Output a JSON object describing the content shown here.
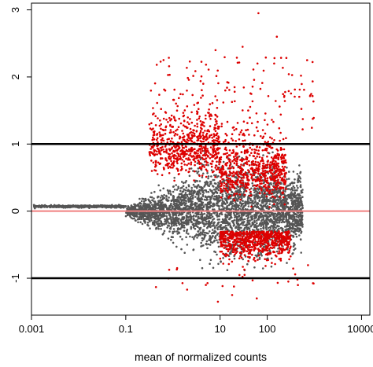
{
  "chart_data": {
    "type": "scatter",
    "title": "",
    "xlabel": "mean of normalized counts",
    "ylabel": "",
    "x_scale": "log10",
    "xlim": [
      0.001,
      15000
    ],
    "ylim": [
      -1.55,
      3.1
    ],
    "x_ticks": [
      {
        "value": 0.001,
        "label": "0.001"
      },
      {
        "value": 0.1,
        "label": "0.1"
      },
      {
        "value": 10,
        "label": "10"
      },
      {
        "value": 100,
        "label": "100"
      },
      {
        "value": 10000,
        "label": "10000"
      }
    ],
    "y_ticks": [
      {
        "value": -1,
        "label": "-1"
      },
      {
        "value": 0,
        "label": "0"
      },
      {
        "value": 1,
        "label": "1"
      },
      {
        "value": 2,
        "label": "2"
      },
      {
        "value": 3,
        "label": "3"
      }
    ],
    "reference_lines": [
      {
        "y": 1,
        "color": "#000000"
      },
      {
        "y": -1,
        "color": "#000000"
      },
      {
        "y": 0,
        "color": "#f08080"
      }
    ],
    "grid": false,
    "legend": "none",
    "colors": {
      "not_significant": "#555555",
      "significant": "#dd0000",
      "zero_line": "#f08080",
      "threshold_lines": "#000000"
    },
    "notable_points": [
      {
        "x": 65,
        "y": 2.95
      },
      {
        "x": 160,
        "y": 2.6
      },
      {
        "x": 8,
        "y": 2.4
      },
      {
        "x": 30,
        "y": 2.45
      },
      {
        "x": 140,
        "y": 2.2
      },
      {
        "x": 60,
        "y": -1.3
      },
      {
        "x": 18,
        "y": -1.25
      },
      {
        "x": 9,
        "y": -1.35
      },
      {
        "x": 5,
        "y": -1.1
      },
      {
        "x": 280,
        "y": -1.05
      }
    ]
  }
}
